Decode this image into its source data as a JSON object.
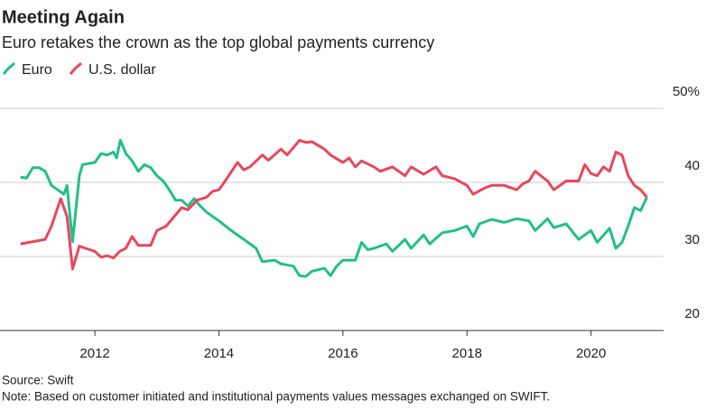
{
  "chart_data": {
    "type": "line",
    "title": "Meeting Again",
    "subtitle": "Euro retakes the crown as the top global payments currency",
    "source": "Source: Swift",
    "note": "Note: Based on customer initiated and institutional payments values messages exchanged on SWIFT.",
    "xlim": [
      2010.47,
      2021.17
    ],
    "xticks": [
      2012,
      2014,
      2016,
      2018,
      2020
    ],
    "ylim": [
      20,
      50
    ],
    "yticks": [
      20,
      30,
      40,
      {
        "value": 50,
        "label": "50%"
      }
    ],
    "grid": true,
    "series": [
      {
        "name": "Euro",
        "color": "#22bf86",
        "x": [
          2010.8,
          2010.9,
          2011.0,
          2011.1,
          2011.2,
          2011.3,
          2011.4,
          2011.5,
          2011.55,
          2011.64,
          2011.75,
          2011.8,
          2012.0,
          2012.1,
          2012.2,
          2012.3,
          2012.35,
          2012.41,
          2012.5,
          2012.6,
          2012.7,
          2012.8,
          2012.9,
          2013.0,
          2013.1,
          2013.2,
          2013.3,
          2013.4,
          2013.5,
          2013.6,
          2013.7,
          2013.8,
          2014.0,
          2014.2,
          2014.4,
          2014.6,
          2014.7,
          2014.9,
          2015.0,
          2015.2,
          2015.3,
          2015.4,
          2015.5,
          2015.7,
          2015.8,
          2015.9,
          2016.0,
          2016.2,
          2016.3,
          2016.4,
          2016.5,
          2016.7,
          2016.8,
          2017.0,
          2017.1,
          2017.3,
          2017.4,
          2017.6,
          2017.8,
          2018.0,
          2018.1,
          2018.2,
          2018.4,
          2018.6,
          2018.8,
          2019.0,
          2019.1,
          2019.3,
          2019.4,
          2019.6,
          2019.8,
          2020.0,
          2020.1,
          2020.3,
          2020.4,
          2020.5,
          2020.6,
          2020.7,
          2020.8,
          2020.9
        ],
        "values": [
          40.7,
          40.6,
          42.0,
          42.0,
          41.5,
          39.6,
          39.0,
          38.4,
          39.6,
          32.0,
          40.9,
          42.4,
          42.7,
          43.9,
          43.7,
          44.1,
          43.3,
          45.7,
          43.9,
          42.9,
          41.5,
          42.4,
          42.0,
          40.9,
          40.2,
          39.0,
          37.6,
          37.6,
          36.8,
          37.8,
          36.8,
          36.0,
          34.8,
          33.5,
          32.3,
          31.1,
          29.3,
          29.5,
          29.0,
          28.7,
          27.4,
          27.3,
          28.0,
          28.4,
          27.4,
          28.7,
          29.5,
          29.5,
          31.9,
          30.9,
          31.1,
          31.7,
          30.7,
          32.3,
          31.1,
          32.9,
          31.7,
          33.2,
          33.5,
          34.1,
          32.7,
          34.4,
          35.0,
          34.6,
          35.1,
          34.8,
          33.5,
          35.1,
          33.9,
          34.4,
          32.3,
          33.5,
          31.9,
          33.8,
          31.1,
          31.9,
          34.1,
          36.6,
          36.2,
          38.0
        ]
      },
      {
        "name": "U.S. dollar",
        "color": "#e8475d",
        "x": [
          2010.8,
          2011.0,
          2011.2,
          2011.3,
          2011.45,
          2011.55,
          2011.64,
          2011.75,
          2011.85,
          2012.0,
          2012.1,
          2012.2,
          2012.3,
          2012.4,
          2012.5,
          2012.6,
          2012.7,
          2012.9,
          2013.0,
          2013.15,
          2013.3,
          2013.4,
          2013.5,
          2013.65,
          2013.8,
          2013.9,
          2014.0,
          2014.1,
          2014.3,
          2014.4,
          2014.5,
          2014.7,
          2014.8,
          2015.0,
          2015.1,
          2015.3,
          2015.4,
          2015.5,
          2015.7,
          2015.8,
          2016.0,
          2016.1,
          2016.2,
          2016.3,
          2016.5,
          2016.6,
          2016.8,
          2017.0,
          2017.1,
          2017.3,
          2017.5,
          2017.6,
          2017.8,
          2018.0,
          2018.1,
          2018.3,
          2018.4,
          2018.6,
          2018.8,
          2018.9,
          2019.0,
          2019.1,
          2019.3,
          2019.4,
          2019.6,
          2019.8,
          2019.9,
          2020.0,
          2020.1,
          2020.2,
          2020.3,
          2020.4,
          2020.5,
          2020.6,
          2020.7,
          2020.8,
          2020.9
        ],
        "values": [
          31.7,
          32.0,
          32.3,
          34.1,
          37.8,
          35.4,
          28.3,
          31.4,
          31.1,
          30.7,
          29.9,
          30.1,
          29.8,
          30.7,
          31.1,
          32.7,
          31.5,
          31.5,
          33.5,
          34.1,
          35.6,
          36.6,
          36.3,
          37.6,
          38.0,
          38.8,
          39.0,
          40.2,
          42.7,
          41.7,
          42.1,
          43.7,
          43.0,
          44.5,
          43.7,
          45.7,
          45.4,
          45.5,
          44.5,
          43.7,
          42.7,
          43.3,
          42.1,
          42.9,
          42.1,
          41.5,
          42.1,
          40.9,
          42.1,
          41.1,
          42.1,
          40.9,
          40.5,
          39.6,
          38.4,
          39.3,
          39.6,
          39.6,
          39.0,
          39.8,
          40.2,
          41.5,
          40.2,
          39.0,
          40.2,
          40.2,
          42.4,
          41.2,
          40.9,
          42.1,
          41.5,
          44.1,
          43.7,
          40.9,
          39.6,
          39.0,
          38.0
        ]
      }
    ]
  }
}
